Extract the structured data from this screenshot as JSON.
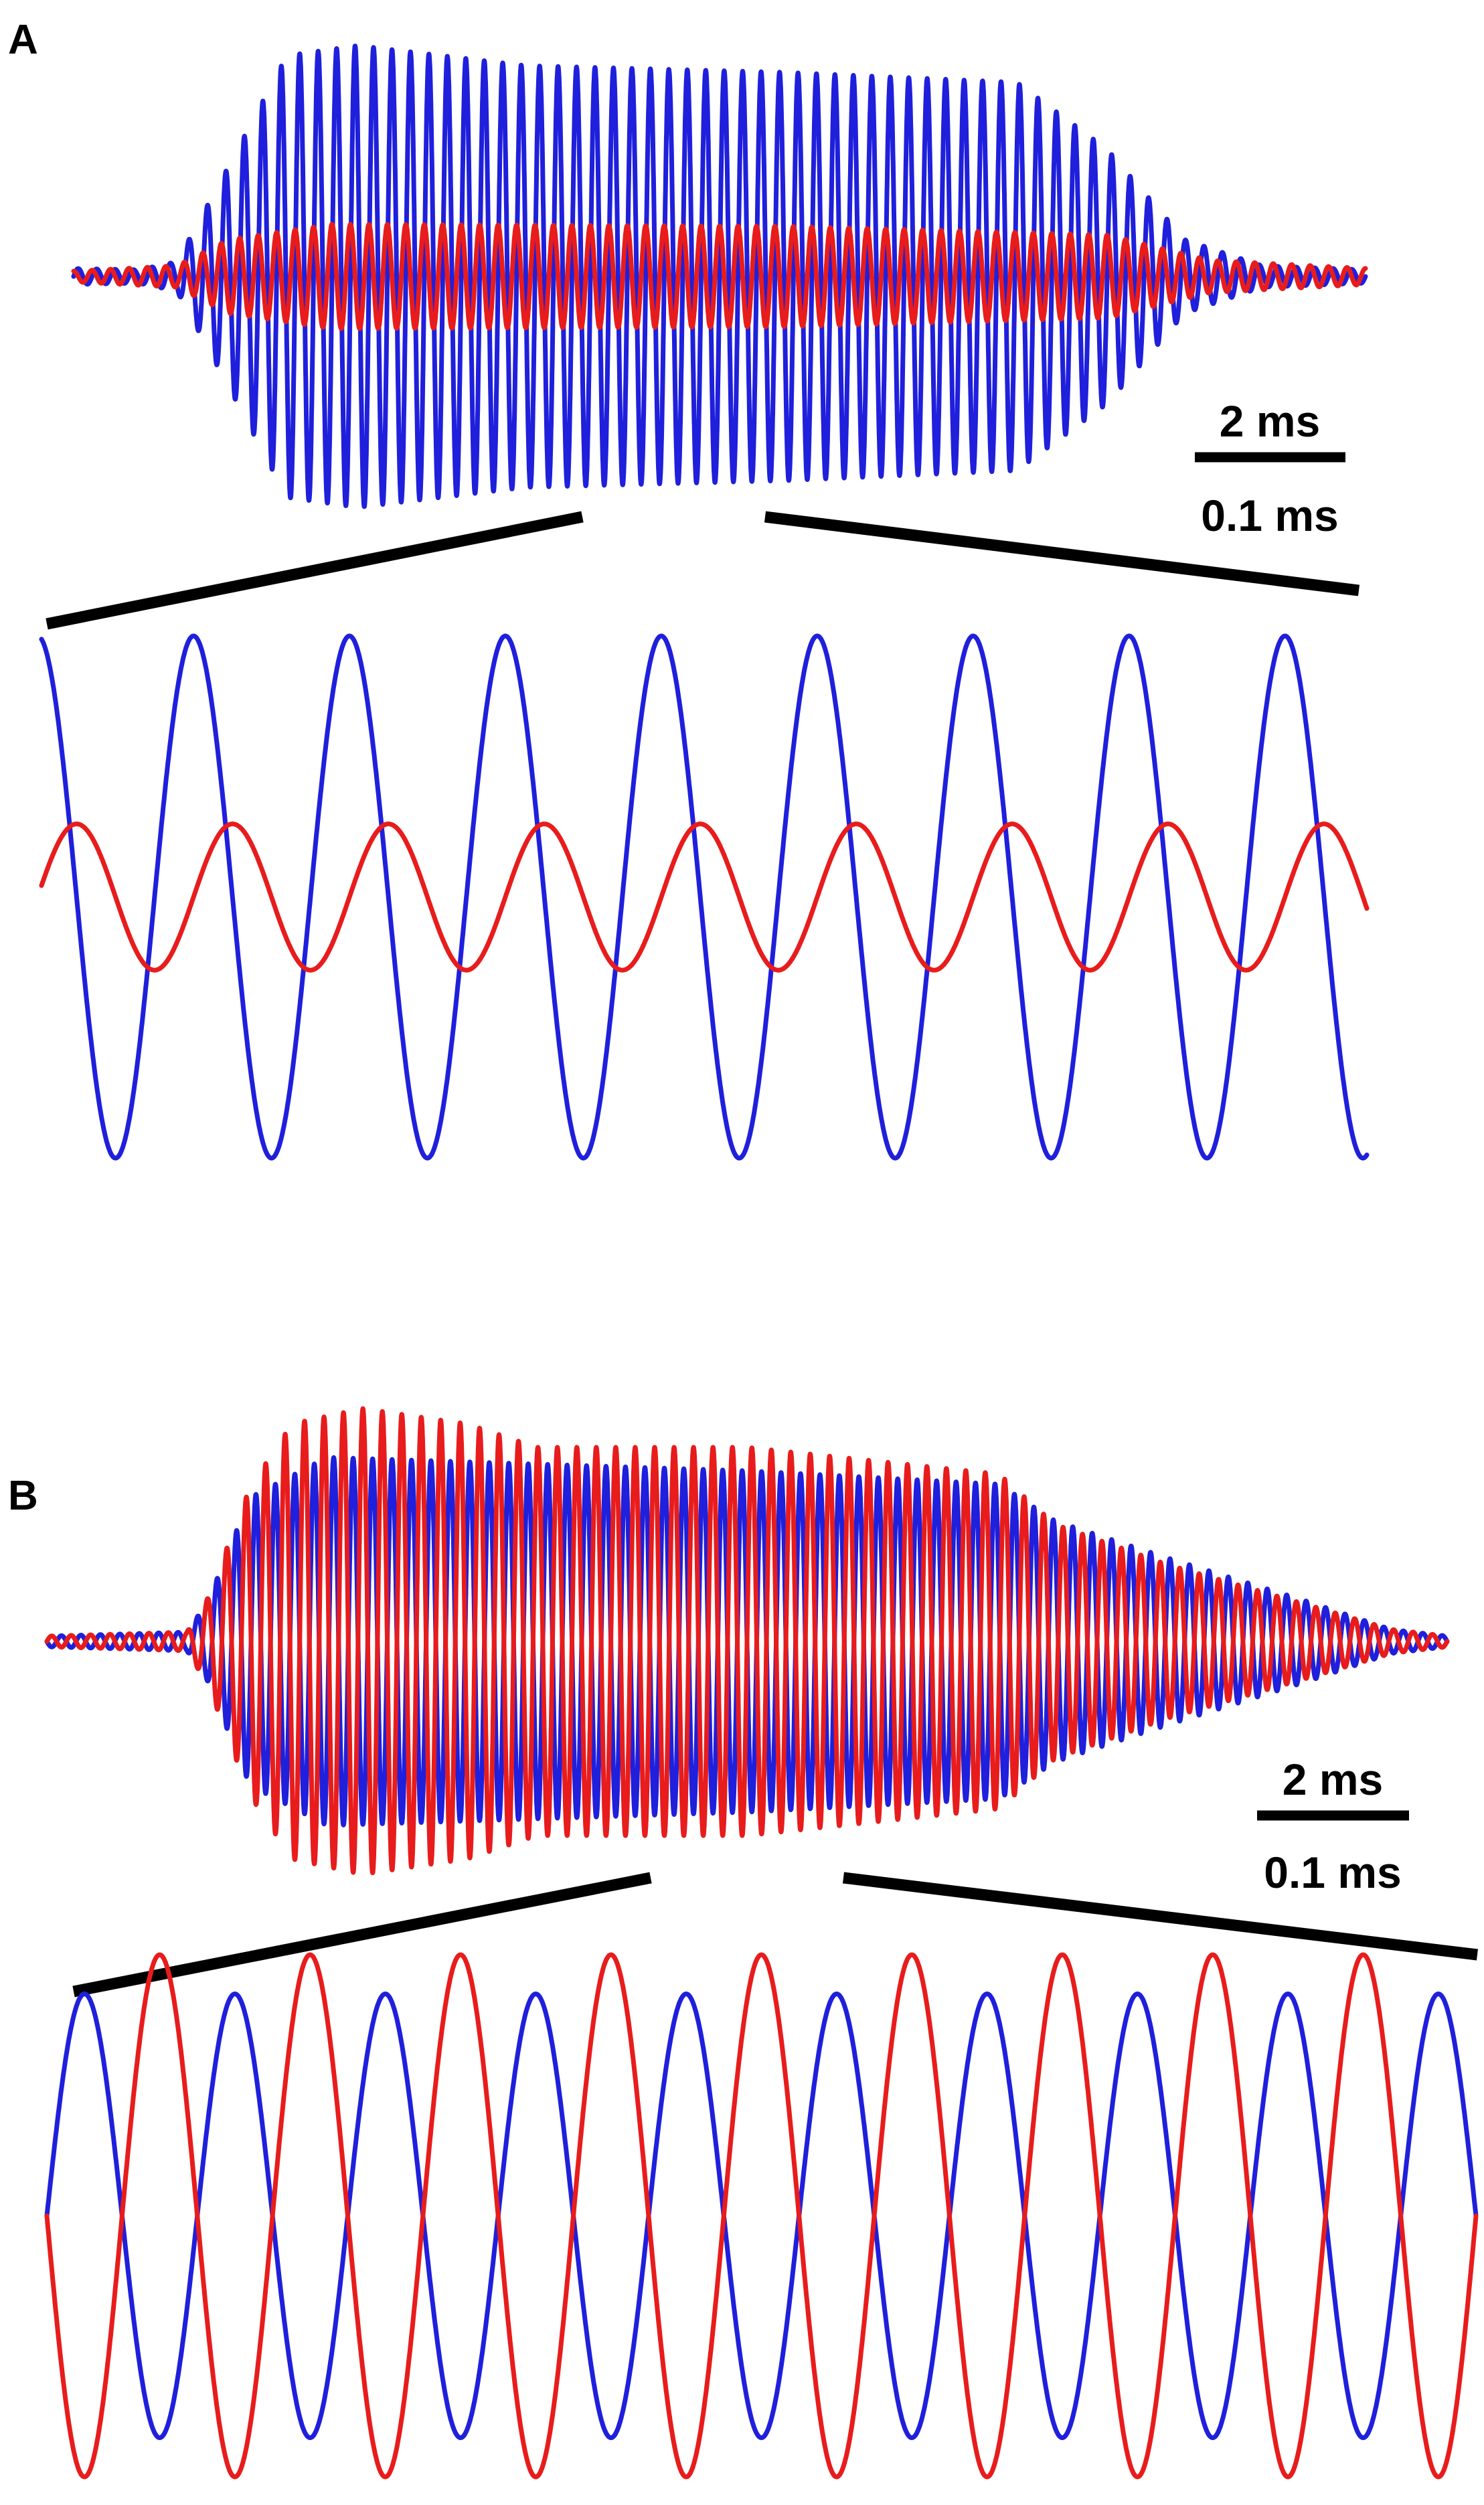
{
  "colors": {
    "blue": "#1f1fdc",
    "red": "#e81c1c"
  },
  "chart_data": [
    {
      "panel": "A",
      "type": "line",
      "series": [
        {
          "color": "#1f1fdc",
          "role": "envelope-overview",
          "relative_amplitude": 1.0,
          "cycles": 70
        },
        {
          "color": "#e81c1c",
          "role": "envelope-overview",
          "relative_amplitude": 0.24,
          "cycles": 70
        }
      ],
      "scale_bars": {
        "overview": "2 ms",
        "zoom": "0.1 ms"
      },
      "zoom": {
        "cycles": 8.5,
        "blue_relative_amplitude": 1.0,
        "red_relative_amplitude": 0.28,
        "red_phase_lag_cycles": 0.25
      }
    },
    {
      "panel": "B",
      "type": "line",
      "series": [
        {
          "color": "#1f1fdc",
          "role": "envelope-overview",
          "relative_amplitude": 0.88,
          "cycles": 72
        },
        {
          "color": "#e81c1c",
          "role": "envelope-overview",
          "relative_amplitude": 1.0,
          "cycles": 72
        }
      ],
      "scale_bars": {
        "overview": "2 ms",
        "zoom": "0.1 ms"
      },
      "zoom": {
        "cycles": 9.5,
        "blue_relative_amplitude": 0.85,
        "red_relative_amplitude": 1.0,
        "red_phase_lag_cycles": 0.5
      }
    }
  ]
}
